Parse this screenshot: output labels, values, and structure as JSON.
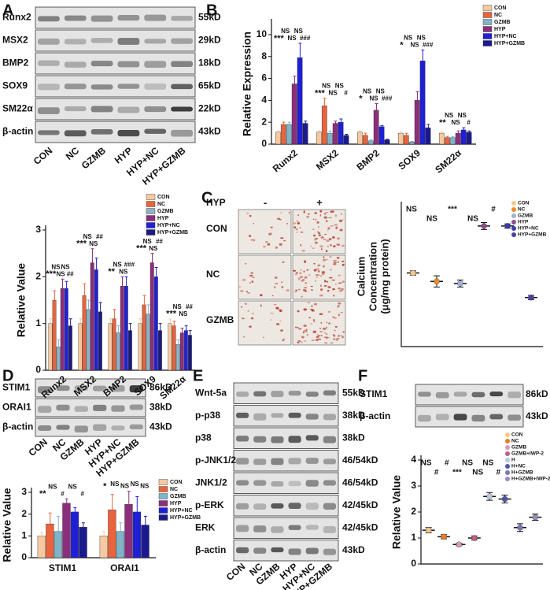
{
  "panels": [
    "A",
    "B",
    "C",
    "D",
    "E",
    "F"
  ],
  "blots": [
    {
      "rows": [
        {
          "protein": "Runx2",
          "size": "55kD"
        },
        {
          "protein": "MSX2",
          "size": "29kD"
        },
        {
          "protein": "BMP2",
          "size": "18kD"
        },
        {
          "protein": "SOX9",
          "size": "65kD"
        },
        {
          "protein": "SM22α",
          "size": "22kD"
        },
        {
          "protein": "β-actin",
          "size": "43kD"
        }
      ],
      "lanes": [
        "CON",
        "NC",
        "GZMB",
        "HYP",
        "HYP+NC",
        "HYP+GZMB"
      ]
    },
    {
      "rows": [
        {
          "protein": "STIM1",
          "size": "86kD"
        },
        {
          "protein": "ORAI1",
          "size": "38kD"
        },
        {
          "protein": "β-actin",
          "size": "43kD"
        }
      ],
      "lanes": [
        "CON",
        "NC",
        "GZMB",
        "HYP",
        "HYP+NC",
        "HYP+GZMB"
      ]
    },
    {
      "rows": [
        {
          "protein": "Wnt-5a",
          "size": "55kD"
        },
        {
          "protein": "p-p38",
          "size": "38kD"
        },
        {
          "protein": "p38",
          "size": "38kD"
        },
        {
          "protein": "p-JNK1/2",
          "size": "46/54kD"
        },
        {
          "protein": "JNK1/2",
          "size": "46/54kD"
        },
        {
          "protein": "p-ERK",
          "size": "42/45kD"
        },
        {
          "protein": "ERK",
          "size": "42/45kD"
        },
        {
          "protein": "β-actin",
          "size": "43kD"
        }
      ],
      "lanes": [
        "CON",
        "NC",
        "GZMB",
        "HYP",
        "HYP+NC",
        "HYP+GZMB"
      ]
    },
    {
      "rows": [
        {
          "protein": "STIM1",
          "size": "86kD"
        },
        {
          "protein": "β-actin",
          "size": "43kD"
        }
      ]
    }
  ],
  "micrographs": {
    "condition": "HYP",
    "columns": [
      "-",
      "+"
    ],
    "rows": [
      "CON",
      "NC",
      "GZMB"
    ]
  },
  "chart_data": [
    {
      "type": "bar",
      "ylabel": "Relative Value",
      "categories": [
        "Runx2",
        "MSX2",
        "BMP2",
        "SOX9",
        "SM22α"
      ],
      "ylim": [
        0,
        3
      ],
      "yticks": [
        0,
        1,
        2,
        3
      ],
      "legend": "upper right",
      "series": [
        {
          "name": "CON",
          "color": "#f6c9a0",
          "values": [
            1.0,
            1.0,
            1.0,
            1.0,
            1.0
          ],
          "errors": [
            0.1,
            0.1,
            0.1,
            0.1,
            0.1
          ]
        },
        {
          "name": "NC",
          "color": "#e8643c",
          "values": [
            1.5,
            1.6,
            1.1,
            1.4,
            0.95
          ],
          "errors": [
            0.2,
            0.25,
            0.2,
            0.2,
            0.1
          ]
        },
        {
          "name": "GZMB",
          "color": "#8fb3c4",
          "values": [
            0.5,
            1.3,
            0.8,
            1.2,
            0.55
          ],
          "errors": [
            0.15,
            0.2,
            0.15,
            0.2,
            0.1
          ]
        },
        {
          "name": "HYP",
          "color": "#8b2f7a",
          "values": [
            1.75,
            2.3,
            1.8,
            2.3,
            0.8
          ],
          "errors": [
            0.2,
            0.3,
            0.2,
            0.2,
            0.1
          ]
        },
        {
          "name": "HYP+NC",
          "color": "#2020d8",
          "values": [
            1.75,
            2.15,
            1.8,
            2.0,
            0.85
          ],
          "errors": [
            0.15,
            0.25,
            0.2,
            0.2,
            0.1
          ]
        },
        {
          "name": "HYP+GZMB",
          "color": "#1a1a80",
          "values": [
            0.95,
            1.25,
            0.85,
            0.85,
            0.75
          ],
          "errors": [
            0.15,
            0.2,
            0.15,
            0.15,
            0.1
          ]
        }
      ],
      "annotations": [
        [
          "***",
          "NS",
          "NS",
          "NS",
          "##"
        ],
        [
          "***",
          "NS",
          "NS",
          "##"
        ],
        [
          "**",
          "NS",
          "NS",
          "###"
        ],
        [
          "***",
          "NS",
          "NS",
          "##"
        ],
        [
          "***",
          "NS",
          "NS",
          "##"
        ]
      ]
    },
    {
      "type": "bar",
      "ylabel": "Relative Expression",
      "categories": [
        "Runx2",
        "MSX2",
        "BMP2",
        "SOX9",
        "SM22α"
      ],
      "ylim": [
        0,
        11
      ],
      "yticks": [
        0,
        2,
        4,
        6,
        8,
        10
      ],
      "legend": "upper right",
      "series": [
        {
          "name": "CON",
          "color": "#f6c9a0",
          "values": [
            1.1,
            1.1,
            1.1,
            1.0,
            1.0
          ],
          "errors": [
            0.1,
            0.1,
            0.1,
            0.1,
            0.1
          ]
        },
        {
          "name": "NC",
          "color": "#e8643c",
          "values": [
            1.8,
            3.5,
            0.8,
            0.8,
            0.6
          ],
          "errors": [
            0.2,
            0.7,
            0.2,
            0.2,
            0.1
          ]
        },
        {
          "name": "GZMB",
          "color": "#7fb3c8",
          "values": [
            1.8,
            1.0,
            0.3,
            0.2,
            0.6
          ],
          "errors": [
            0.2,
            0.2,
            0.1,
            0.05,
            0.1
          ]
        },
        {
          "name": "HYP",
          "color": "#8b2f7a",
          "values": [
            5.5,
            1.9,
            3.1,
            4.0,
            1.0
          ],
          "errors": [
            0.7,
            0.2,
            0.6,
            0.8,
            0.2
          ]
        },
        {
          "name": "HYP+NC",
          "color": "#1f1fd6",
          "values": [
            7.9,
            2.0,
            1.6,
            7.6,
            1.3
          ],
          "errors": [
            1.3,
            0.3,
            0.1,
            1.0,
            0.2
          ]
        },
        {
          "name": "HYP+GZMB",
          "color": "#1a1a8c",
          "values": [
            1.9,
            0.8,
            0.4,
            1.5,
            1.1
          ],
          "errors": [
            0.2,
            0.1,
            0.05,
            0.3,
            0.1
          ]
        }
      ],
      "annotations": [
        [
          "***",
          "NS",
          "NS",
          "NS",
          "###"
        ],
        [
          "***",
          "NS",
          "NS",
          "NS",
          "#"
        ],
        [
          "*",
          "NS",
          "NS",
          "NS",
          "###"
        ],
        [
          "*",
          "NS",
          "NS",
          "NS",
          "###"
        ],
        [
          "**",
          "NS",
          "NS",
          "NS",
          "#"
        ]
      ]
    },
    {
      "type": "dot",
      "ylabel": [
        "Calcium",
        "Concentration",
        "(μg/mg protein)"
      ],
      "categories": [
        "CON",
        "NC",
        "GZMB",
        "HYP",
        "HYP+NC",
        "HYP+GZMB"
      ],
      "colors": [
        "#f5c88a",
        "#f08a2a",
        "#9fb0d8",
        "#8b4d8b",
        "#3b3bb0",
        "#4b3fa0"
      ],
      "values": [
        0.105,
        0.093,
        0.09,
        0.172,
        0.172,
        0.07
      ],
      "errors": [
        0.003,
        0.008,
        0.005,
        0.005,
        0.003,
        0.003
      ],
      "ylim": [
        0,
        0.2
      ],
      "legend": "upper right",
      "annotations": [
        "NS",
        "NS",
        "***",
        "NS",
        "#"
      ]
    },
    {
      "type": "bar",
      "ylabel": "Relative Value",
      "categories": [
        "STIM1",
        "ORAI1"
      ],
      "ylim": [
        0,
        3
      ],
      "yticks": [
        0,
        1,
        2,
        3
      ],
      "legend": "upper right",
      "series": [
        {
          "name": "CON",
          "color": "#f6c9a0",
          "values": [
            1.0,
            1.0
          ],
          "errors": [
            0.15,
            0.2
          ]
        },
        {
          "name": "NC",
          "color": "#e8643c",
          "values": [
            1.55,
            2.2
          ],
          "errors": [
            0.5,
            0.7
          ]
        },
        {
          "name": "GZMB",
          "color": "#7fb3c8",
          "values": [
            1.2,
            1.2
          ],
          "errors": [
            0.7,
            0.4
          ]
        },
        {
          "name": "HYP",
          "color": "#8b2f7a",
          "values": [
            2.5,
            2.45
          ],
          "errors": [
            0.2,
            0.6
          ]
        },
        {
          "name": "HYP+NC",
          "color": "#1f1fd6",
          "values": [
            2.1,
            2.1
          ],
          "errors": [
            0.2,
            0.7
          ]
        },
        {
          "name": "HYP+GZMB",
          "color": "#1a1a8c",
          "values": [
            1.4,
            1.5
          ],
          "errors": [
            0.2,
            0.4
          ]
        }
      ],
      "annotations": [
        [
          "**",
          "NS",
          "#",
          "NS",
          "#"
        ],
        [
          "*",
          "NS",
          "NS",
          "NS",
          "NS"
        ]
      ]
    },
    {
      "type": "dot",
      "ylabel": "Relative Value",
      "categories": [
        "CON",
        "NC",
        "GZMB",
        "GZMB+IWP-2",
        "H",
        "H+NC",
        "H+GZMB",
        "H+GZMB+IWP-2"
      ],
      "colors": [
        "#f5c88a",
        "#f07a20",
        "#d89ab8",
        "#c06080",
        "#b8c8e8",
        "#4a5aa8",
        "#7878b8",
        "#9a8ac0"
      ],
      "values": [
        1.3,
        1.05,
        0.75,
        1.0,
        2.6,
        2.5,
        1.4,
        1.8
      ],
      "errors": [
        0.1,
        0.08,
        0.05,
        0.08,
        0.15,
        0.15,
        0.15,
        0.12
      ],
      "ylim": [
        0,
        4
      ],
      "yticks": [
        0,
        1,
        2,
        3,
        4
      ],
      "legend": "upper right",
      "annotations": [
        "NS",
        "#",
        "#",
        "***",
        "NS",
        "NS",
        "NS",
        "#"
      ]
    }
  ]
}
